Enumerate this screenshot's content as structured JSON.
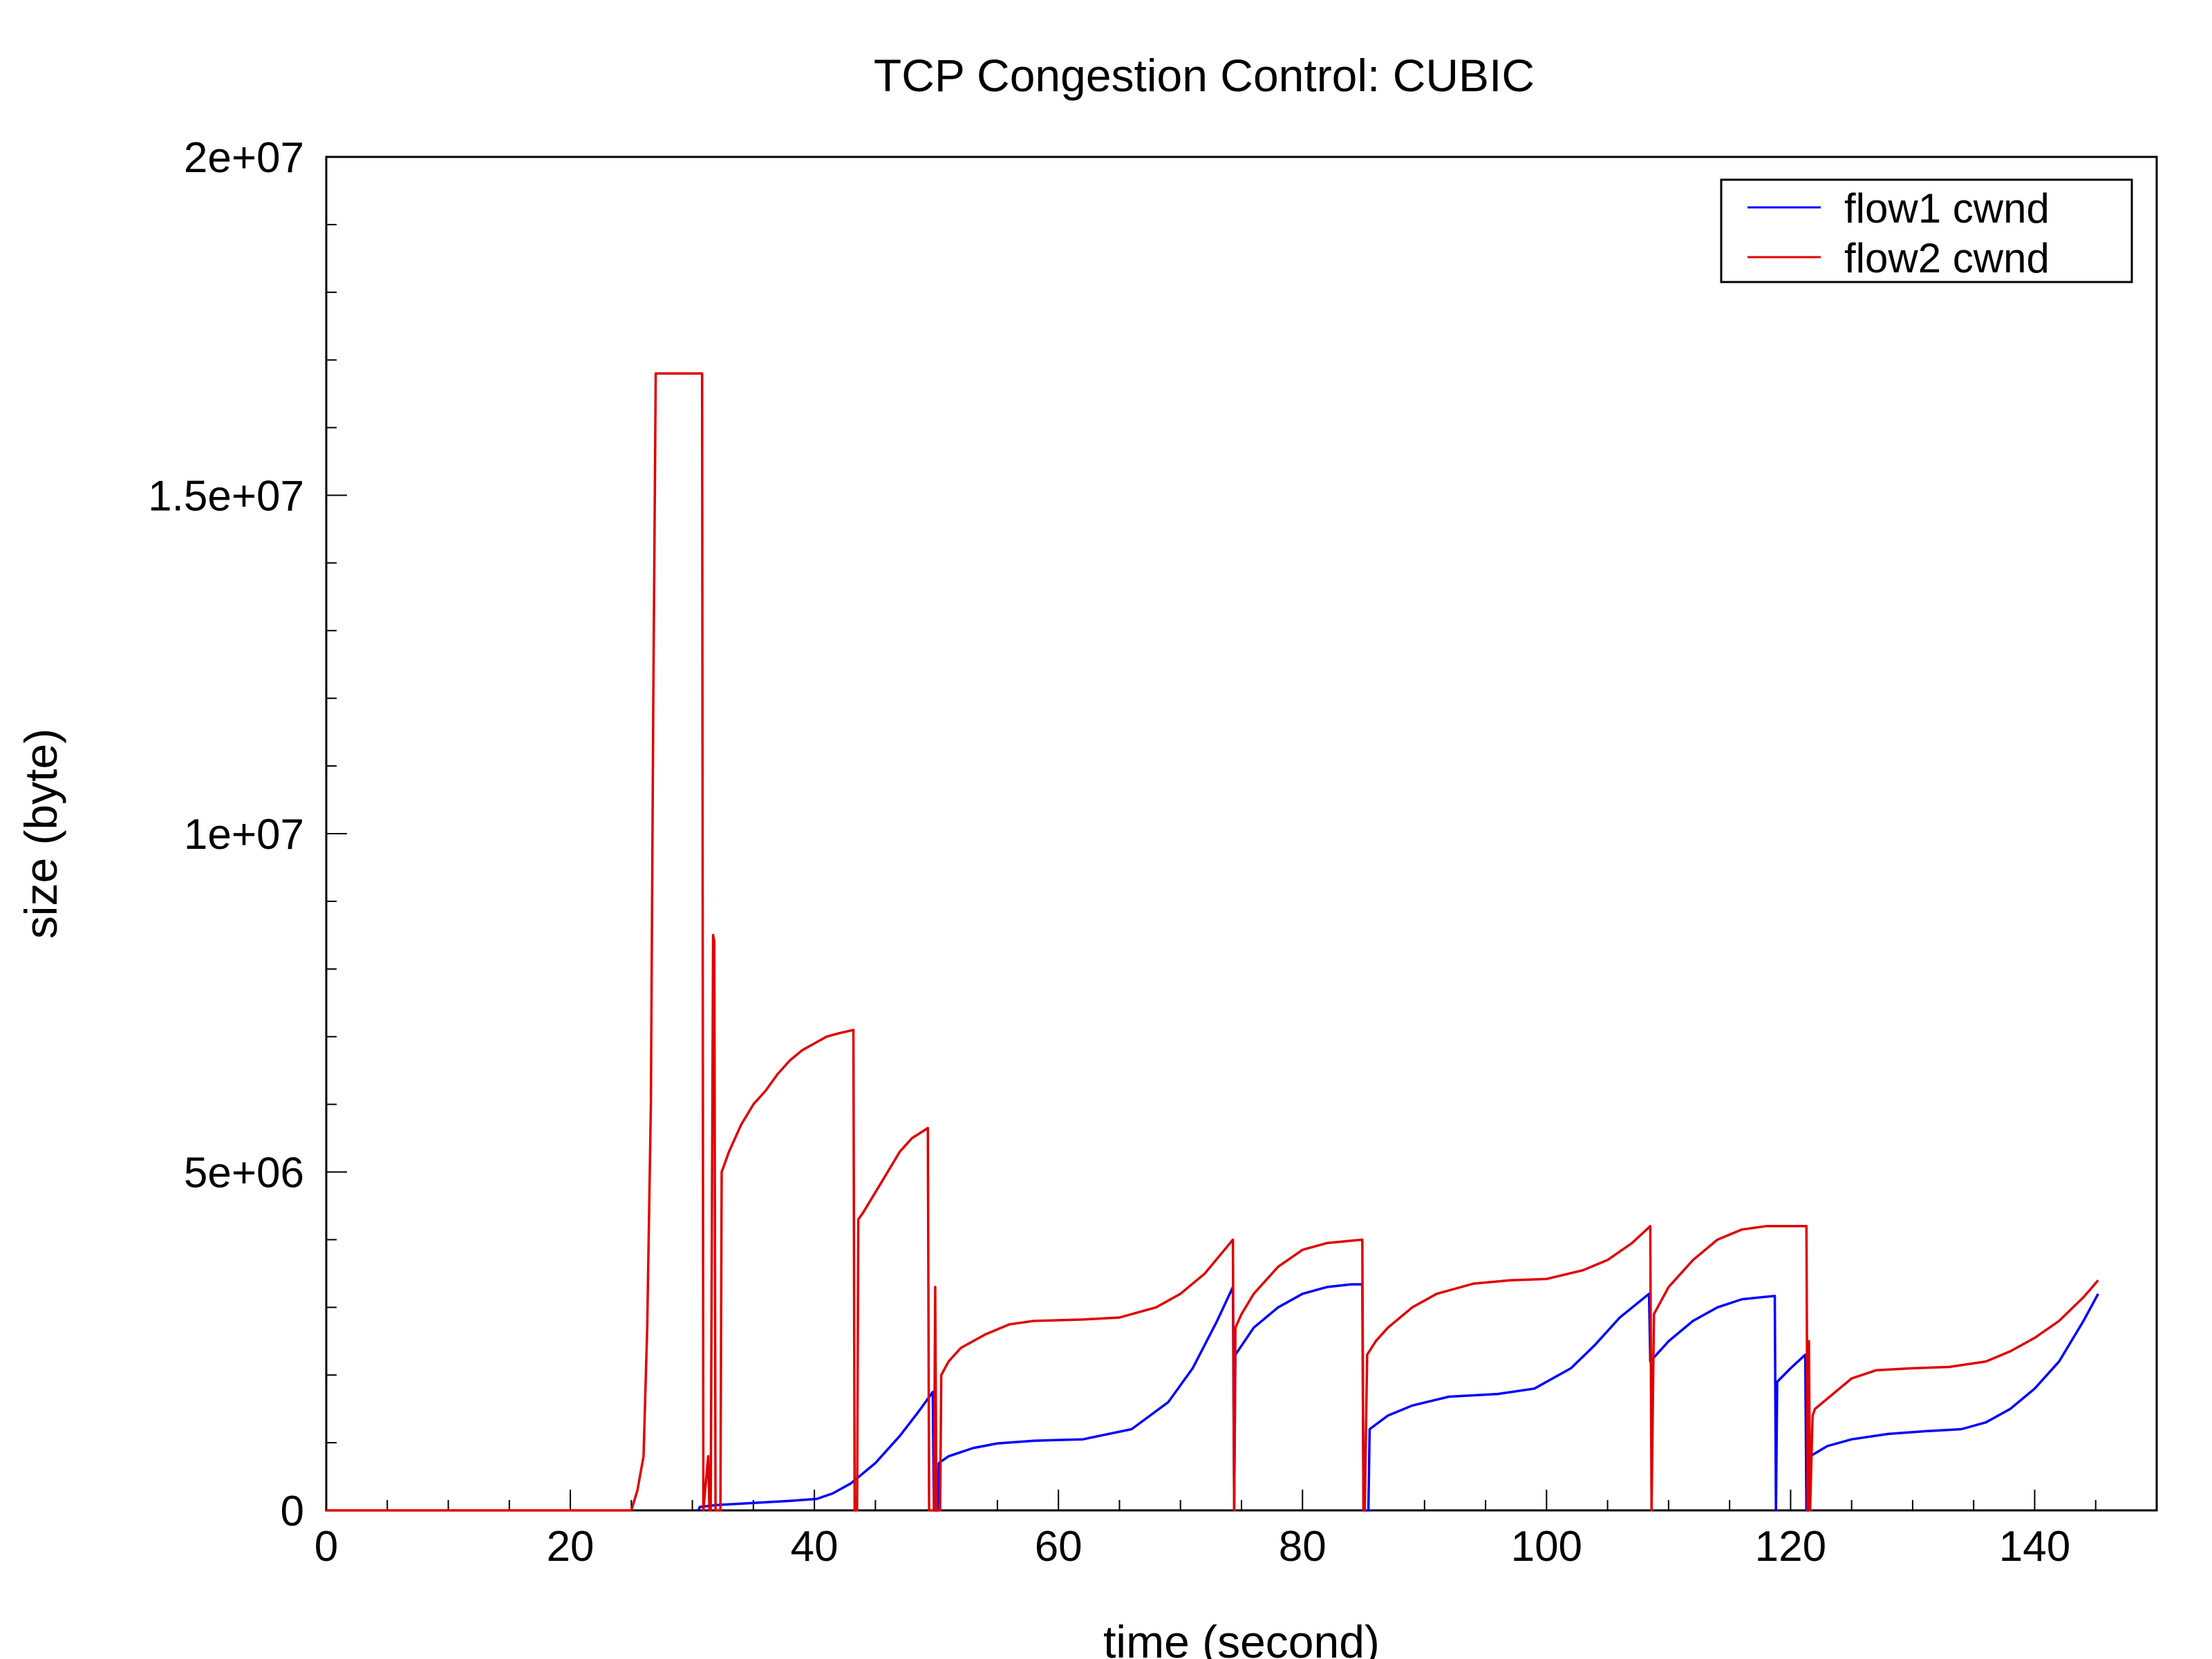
{
  "chart_data": {
    "type": "line",
    "title": "TCP Congestion Control: CUBIC",
    "xlabel": "time (second)",
    "ylabel": "size (byte)",
    "xlim": [
      0,
      150
    ],
    "ylim": [
      0,
      20000000
    ],
    "xticks": [
      0,
      20,
      40,
      60,
      80,
      100,
      120,
      140
    ],
    "xtick_labels": [
      "0",
      "20",
      "40",
      "60",
      "80",
      "100",
      "120",
      "140"
    ],
    "yticks": [
      0,
      5000000,
      10000000,
      15000000,
      20000000
    ],
    "ytick_labels": [
      "0",
      "5e+06",
      "1e+07",
      "1.5e+07",
      "2e+07"
    ],
    "grid": false,
    "legend_position": "top-right",
    "series": [
      {
        "name": "flow1 cwnd",
        "color": "#0000ff",
        "points": [
          [
            30.5,
            0
          ],
          [
            30.6,
            50000
          ],
          [
            32,
            80000
          ],
          [
            35,
            110000
          ],
          [
            38,
            140000
          ],
          [
            40.2,
            170000
          ],
          [
            41.5,
            250000
          ],
          [
            43,
            400000
          ],
          [
            45,
            700000
          ],
          [
            47,
            1100000
          ],
          [
            48.5,
            1450000
          ],
          [
            49.7,
            1750000
          ],
          [
            49.8,
            0
          ],
          [
            50.1,
            0
          ],
          [
            50.2,
            700000
          ],
          [
            51,
            800000
          ],
          [
            53,
            920000
          ],
          [
            55,
            990000
          ],
          [
            58,
            1030000
          ],
          [
            62,
            1050000
          ],
          [
            66,
            1200000
          ],
          [
            69,
            1600000
          ],
          [
            71,
            2100000
          ],
          [
            73,
            2800000
          ],
          [
            74.3,
            3300000
          ],
          [
            74.4,
            0
          ],
          [
            74.5,
            2300000
          ],
          [
            76,
            2700000
          ],
          [
            78,
            3000000
          ],
          [
            80,
            3200000
          ],
          [
            82,
            3300000
          ],
          [
            84,
            3340000
          ],
          [
            84.9,
            3340000
          ],
          [
            85,
            0
          ],
          [
            85.4,
            0
          ],
          [
            85.5,
            1200000
          ],
          [
            87,
            1400000
          ],
          [
            89,
            1550000
          ],
          [
            92,
            1680000
          ],
          [
            96,
            1720000
          ],
          [
            99,
            1800000
          ],
          [
            102,
            2100000
          ],
          [
            104,
            2450000
          ],
          [
            106,
            2850000
          ],
          [
            108.4,
            3200000
          ],
          [
            108.5,
            2200000
          ],
          [
            110,
            2500000
          ],
          [
            112,
            2800000
          ],
          [
            114,
            3000000
          ],
          [
            116,
            3120000
          ],
          [
            118.7,
            3170000
          ],
          [
            118.8,
            0
          ],
          [
            118.9,
            1900000
          ],
          [
            120,
            2100000
          ],
          [
            121.2,
            2300000
          ],
          [
            121.3,
            0
          ],
          [
            121.5,
            0
          ],
          [
            121.6,
            800000
          ],
          [
            123,
            950000
          ],
          [
            125,
            1050000
          ],
          [
            128,
            1130000
          ],
          [
            131,
            1170000
          ],
          [
            134,
            1200000
          ],
          [
            136,
            1300000
          ],
          [
            138,
            1500000
          ],
          [
            140,
            1800000
          ],
          [
            142,
            2200000
          ],
          [
            144,
            2800000
          ],
          [
            145.2,
            3200000
          ]
        ]
      },
      {
        "name": "flow2 cwnd",
        "color": "#e00000",
        "points": [
          [
            0,
            0
          ],
          [
            25,
            0
          ],
          [
            25.5,
            300000
          ],
          [
            26,
            800000
          ],
          [
            26.3,
            2700000
          ],
          [
            26.6,
            6000000
          ],
          [
            26.8,
            12000000
          ],
          [
            27,
            16800000
          ],
          [
            30.8,
            16800000
          ],
          [
            30.9,
            0
          ],
          [
            31.3,
            800000
          ],
          [
            31.4,
            0
          ],
          [
            31.5,
            0
          ],
          [
            31.7,
            8500000
          ],
          [
            31.8,
            8400000
          ],
          [
            31.9,
            0
          ],
          [
            32.3,
            0
          ],
          [
            32.4,
            5000000
          ],
          [
            33,
            5300000
          ],
          [
            34,
            5700000
          ],
          [
            35,
            6000000
          ],
          [
            36,
            6200000
          ],
          [
            37,
            6450000
          ],
          [
            38,
            6650000
          ],
          [
            39,
            6800000
          ],
          [
            40,
            6900000
          ],
          [
            41,
            7000000
          ],
          [
            42,
            7050000
          ],
          [
            43.2,
            7100000
          ],
          [
            43.3,
            0
          ],
          [
            43.5,
            0
          ],
          [
            43.6,
            4300000
          ],
          [
            44,
            4400000
          ],
          [
            45,
            4700000
          ],
          [
            46,
            5000000
          ],
          [
            47,
            5300000
          ],
          [
            48,
            5500000
          ],
          [
            49.3,
            5650000
          ],
          [
            49.4,
            0
          ],
          [
            49.8,
            0
          ],
          [
            49.9,
            3300000
          ],
          [
            50,
            0
          ],
          [
            50.3,
            0
          ],
          [
            50.4,
            2000000
          ],
          [
            51,
            2200000
          ],
          [
            52,
            2400000
          ],
          [
            54,
            2600000
          ],
          [
            56,
            2750000
          ],
          [
            58,
            2800000
          ],
          [
            62,
            2820000
          ],
          [
            65,
            2850000
          ],
          [
            68,
            3000000
          ],
          [
            70,
            3200000
          ],
          [
            72,
            3500000
          ],
          [
            74.3,
            4000000
          ],
          [
            74.4,
            0
          ],
          [
            74.5,
            2700000
          ],
          [
            75,
            2900000
          ],
          [
            76,
            3200000
          ],
          [
            78,
            3600000
          ],
          [
            80,
            3850000
          ],
          [
            82,
            3950000
          ],
          [
            84.9,
            4000000
          ],
          [
            85,
            0
          ],
          [
            85.1,
            0
          ],
          [
            85.3,
            2300000
          ],
          [
            86,
            2500000
          ],
          [
            87,
            2700000
          ],
          [
            89,
            3000000
          ],
          [
            91,
            3200000
          ],
          [
            94,
            3350000
          ],
          [
            97,
            3400000
          ],
          [
            100,
            3420000
          ],
          [
            103,
            3550000
          ],
          [
            105,
            3700000
          ],
          [
            107,
            3950000
          ],
          [
            108.5,
            4200000
          ],
          [
            108.6,
            0
          ],
          [
            108.8,
            2900000
          ],
          [
            110,
            3300000
          ],
          [
            112,
            3700000
          ],
          [
            114,
            4000000
          ],
          [
            116,
            4150000
          ],
          [
            118,
            4200000
          ],
          [
            121.3,
            4200000
          ],
          [
            121.4,
            0
          ],
          [
            121.5,
            2500000
          ],
          [
            121.6,
            0
          ],
          [
            121.8,
            1400000
          ],
          [
            122,
            1500000
          ],
          [
            123,
            1650000
          ],
          [
            124,
            1800000
          ],
          [
            125,
            1950000
          ],
          [
            127,
            2070000
          ],
          [
            130,
            2100000
          ],
          [
            133,
            2120000
          ],
          [
            136,
            2200000
          ],
          [
            138,
            2350000
          ],
          [
            140,
            2550000
          ],
          [
            142,
            2800000
          ],
          [
            144,
            3150000
          ],
          [
            145.2,
            3400000
          ]
        ]
      }
    ]
  }
}
